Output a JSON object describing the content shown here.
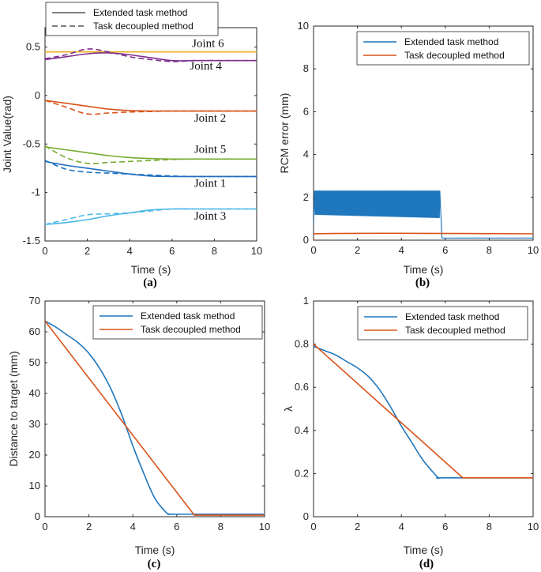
{
  "colors": {
    "extended": "#1f77bd",
    "decoupled": "#d95319",
    "joint1": "#1f6fbf",
    "joint2": "#d95319",
    "joint3": "#4db8e8",
    "joint4": "#7e2f8e",
    "joint5": "#77ac30",
    "joint6": "#edb120"
  },
  "chart_data": [
    {
      "id": "a",
      "type": "line",
      "caption": "(a)",
      "xlabel": "Time (s)",
      "ylabel": "Joint Value(rad)",
      "xlim": [
        0,
        10
      ],
      "ylim": [
        -1.5,
        0.7
      ],
      "xticks": [
        0,
        2,
        4,
        6,
        8,
        10
      ],
      "yticks": [
        -1.5,
        -1,
        -0.5,
        0,
        0.5
      ],
      "ytick_labels": [
        "-1.5",
        "-1",
        "-0.5",
        "0",
        "0.5"
      ],
      "legend": [
        "Extended task method",
        "Task decoupled method"
      ],
      "legend_styles": [
        "solid",
        "dashed"
      ],
      "series": [
        {
          "joint": "joint6",
          "style": "solid",
          "x": [
            0,
            10
          ],
          "y": [
            0.45,
            0.45
          ]
        },
        {
          "joint": "joint6",
          "style": "dashed",
          "x": [
            0,
            10
          ],
          "y": [
            0.45,
            0.45
          ]
        },
        {
          "joint": "joint4",
          "style": "solid",
          "x": [
            0,
            1,
            2,
            3,
            4,
            5,
            6,
            7,
            8,
            10
          ],
          "y": [
            0.37,
            0.4,
            0.43,
            0.44,
            0.42,
            0.39,
            0.36,
            0.36,
            0.36,
            0.36
          ]
        },
        {
          "joint": "joint4",
          "style": "dashed",
          "x": [
            0,
            1,
            2,
            3,
            4,
            5,
            6,
            7,
            8,
            10
          ],
          "y": [
            0.38,
            0.42,
            0.48,
            0.45,
            0.4,
            0.37,
            0.35,
            0.36,
            0.36,
            0.36
          ]
        },
        {
          "joint": "joint2",
          "style": "solid",
          "x": [
            0,
            1,
            2,
            3,
            4,
            5,
            6,
            7,
            8,
            10
          ],
          "y": [
            -0.05,
            -0.08,
            -0.11,
            -0.14,
            -0.155,
            -0.16,
            -0.16,
            -0.16,
            -0.16,
            -0.16
          ]
        },
        {
          "joint": "joint2",
          "style": "dashed",
          "x": [
            0,
            1,
            2,
            3,
            4,
            5,
            6,
            7,
            8,
            10
          ],
          "y": [
            -0.05,
            -0.12,
            -0.19,
            -0.18,
            -0.17,
            -0.165,
            -0.16,
            -0.16,
            -0.16,
            -0.16
          ]
        },
        {
          "joint": "joint5",
          "style": "solid",
          "x": [
            0,
            1,
            2,
            3,
            4,
            5,
            6,
            7,
            8,
            10
          ],
          "y": [
            -0.53,
            -0.56,
            -0.59,
            -0.62,
            -0.64,
            -0.65,
            -0.655,
            -0.655,
            -0.655,
            -0.655
          ]
        },
        {
          "joint": "joint5",
          "style": "dashed",
          "x": [
            0,
            1,
            2,
            3,
            4,
            5,
            6,
            7,
            8,
            10
          ],
          "y": [
            -0.52,
            -0.64,
            -0.7,
            -0.69,
            -0.68,
            -0.67,
            -0.66,
            -0.655,
            -0.655,
            -0.655
          ]
        },
        {
          "joint": "joint1",
          "style": "solid",
          "x": [
            0,
            1,
            2,
            3,
            4,
            5,
            6,
            7,
            8,
            10
          ],
          "y": [
            -0.68,
            -0.72,
            -0.75,
            -0.78,
            -0.81,
            -0.83,
            -0.835,
            -0.835,
            -0.835,
            -0.835
          ]
        },
        {
          "joint": "joint1",
          "style": "dashed",
          "x": [
            0,
            1,
            2,
            3,
            4,
            5,
            6,
            7,
            8,
            10
          ],
          "y": [
            -0.67,
            -0.76,
            -0.79,
            -0.8,
            -0.81,
            -0.82,
            -0.83,
            -0.835,
            -0.835,
            -0.835
          ]
        },
        {
          "joint": "joint3",
          "style": "solid",
          "x": [
            0,
            1,
            2,
            3,
            4,
            5,
            6,
            7,
            8,
            10
          ],
          "y": [
            -1.33,
            -1.31,
            -1.28,
            -1.24,
            -1.21,
            -1.18,
            -1.17,
            -1.17,
            -1.17,
            -1.17
          ]
        },
        {
          "joint": "joint3",
          "style": "dashed",
          "x": [
            0,
            1,
            2,
            3,
            4,
            5,
            6,
            7,
            8,
            10
          ],
          "y": [
            -1.33,
            -1.28,
            -1.23,
            -1.22,
            -1.21,
            -1.19,
            -1.17,
            -1.17,
            -1.17,
            -1.17
          ]
        }
      ],
      "annotations": [
        {
          "text": "Joint 6",
          "x": 7.7,
          "y": 0.5
        },
        {
          "text": "Joint 4",
          "x": 7.6,
          "y": 0.27
        },
        {
          "text": "Joint 2",
          "x": 7.8,
          "y": -0.27
        },
        {
          "text": "Joint 5",
          "x": 7.8,
          "y": -0.59
        },
        {
          "text": "Joint 1",
          "x": 7.8,
          "y": -0.94
        },
        {
          "text": "Joint 3",
          "x": 7.8,
          "y": -1.28
        }
      ]
    },
    {
      "id": "b",
      "type": "line",
      "caption": "(b)",
      "xlabel": "Time (s)",
      "ylabel": "RCM error (mm)",
      "xlim": [
        0,
        10
      ],
      "ylim": [
        0,
        10
      ],
      "xticks": [
        0,
        2,
        4,
        6,
        8,
        10
      ],
      "yticks": [
        0,
        2,
        4,
        6,
        8,
        10
      ],
      "legend": [
        "Extended task method",
        "Task decoupled method"
      ],
      "series": [
        {
          "name": "Extended task method",
          "kind": "oscillation",
          "x": [
            0,
            0.05,
            5.75,
            5.85,
            10
          ],
          "y_low": [
            0.8,
            1.2,
            1.05,
            0.1,
            0.1
          ],
          "y_high": [
            0.8,
            2.3,
            2.3,
            0.1,
            0.1
          ],
          "cycles": 130
        },
        {
          "name": "Task decoupled method",
          "x": [
            0,
            0.05,
            0.1,
            10
          ],
          "y": [
            0,
            0,
            0.3,
            0.3
          ]
        }
      ]
    },
    {
      "id": "c",
      "type": "line",
      "caption": "(c)",
      "xlabel": "Time (s)",
      "ylabel": "Distance to target (mm)",
      "xlim": [
        0,
        10
      ],
      "ylim": [
        0,
        70
      ],
      "xticks": [
        0,
        2,
        4,
        6,
        8,
        10
      ],
      "yticks": [
        0,
        10,
        20,
        30,
        40,
        50,
        60,
        70
      ],
      "legend": [
        "Extended task method",
        "Task decoupled method"
      ],
      "series": [
        {
          "name": "Extended task method",
          "x": [
            0,
            0.5,
            1,
            1.5,
            2,
            2.5,
            3,
            3.5,
            4,
            4.5,
            5,
            5.5,
            5.7,
            6,
            10
          ],
          "y": [
            63.5,
            61.5,
            59,
            56.5,
            53,
            48,
            41.5,
            33,
            23,
            14,
            6,
            1.5,
            0.8,
            0.8,
            0.8
          ]
        },
        {
          "name": "Task decoupled method",
          "x": [
            0,
            6.8,
            10
          ],
          "y": [
            63.5,
            0.5,
            0.5
          ]
        }
      ]
    },
    {
      "id": "d",
      "type": "line",
      "caption": "(d)",
      "xlabel": "Time (s)",
      "ylabel": "λ",
      "xlim": [
        0,
        10
      ],
      "ylim": [
        0,
        1
      ],
      "xticks": [
        0,
        2,
        4,
        6,
        8,
        10
      ],
      "yticks": [
        0,
        0.2,
        0.4,
        0.6,
        0.8,
        1
      ],
      "legend": [
        "Extended task method",
        "Task decoupled method"
      ],
      "series": [
        {
          "name": "Extended task method",
          "x": [
            0,
            0.5,
            1,
            1.5,
            2,
            2.5,
            3,
            3.5,
            4,
            4.5,
            5,
            5.5,
            5.7,
            6,
            10
          ],
          "y": [
            0.79,
            0.77,
            0.75,
            0.72,
            0.69,
            0.65,
            0.59,
            0.51,
            0.42,
            0.34,
            0.26,
            0.2,
            0.18,
            0.18,
            0.18
          ]
        },
        {
          "name": "Task decoupled method",
          "x": [
            0,
            6.8,
            10
          ],
          "y": [
            0.8,
            0.18,
            0.18
          ]
        }
      ]
    }
  ]
}
